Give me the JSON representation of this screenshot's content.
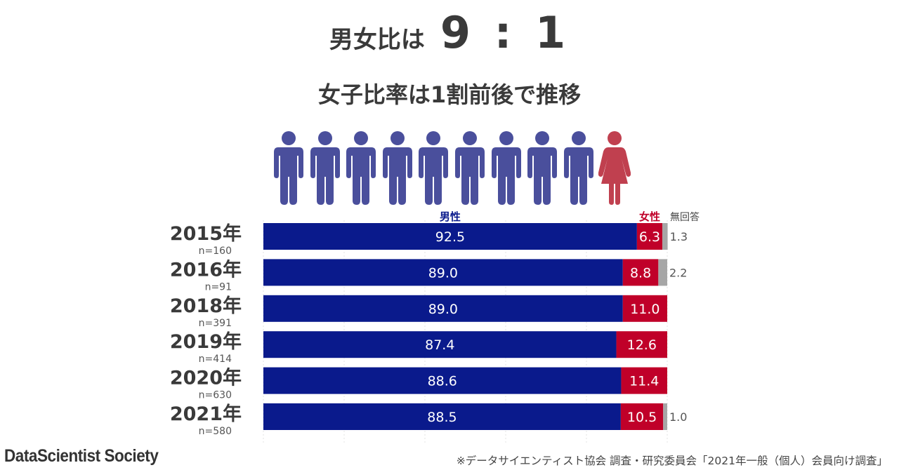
{
  "headline": {
    "lead": "男女比は",
    "ratio": "9 : 1"
  },
  "subtitle": "女子比率は1割前後で推移",
  "icons": {
    "male_count": 9,
    "female_count": 1,
    "male_color": "#4a4f9c",
    "female_color": "#c0404f"
  },
  "colors": {
    "male": "#0a1a8c",
    "female": "#c00029",
    "no_answer": "#a6a6a6"
  },
  "chart_data": {
    "type": "bar",
    "orientation": "horizontal",
    "stacked": true,
    "categories": [
      "2015年",
      "2016年",
      "2018年",
      "2019年",
      "2020年",
      "2021年"
    ],
    "n_labels": [
      "n=160",
      "n=91",
      "n=391",
      "n=414",
      "n=630",
      "n=580"
    ],
    "series": [
      {
        "name": "男性",
        "values": [
          92.5,
          89.0,
          89.0,
          87.4,
          88.6,
          88.5
        ]
      },
      {
        "name": "女性",
        "values": [
          6.3,
          8.8,
          11.0,
          12.6,
          11.4,
          10.5
        ]
      },
      {
        "name": "無回答",
        "values": [
          1.3,
          2.2,
          null,
          null,
          null,
          1.0
        ]
      }
    ],
    "xlim": [
      0,
      100
    ],
    "grid": true,
    "legend": "top"
  },
  "footer": {
    "brand": "DataScientist Society",
    "source": "※データサイエンティスト協会 調査・研究委員会「2021年一般（個人）会員向け調査」"
  }
}
